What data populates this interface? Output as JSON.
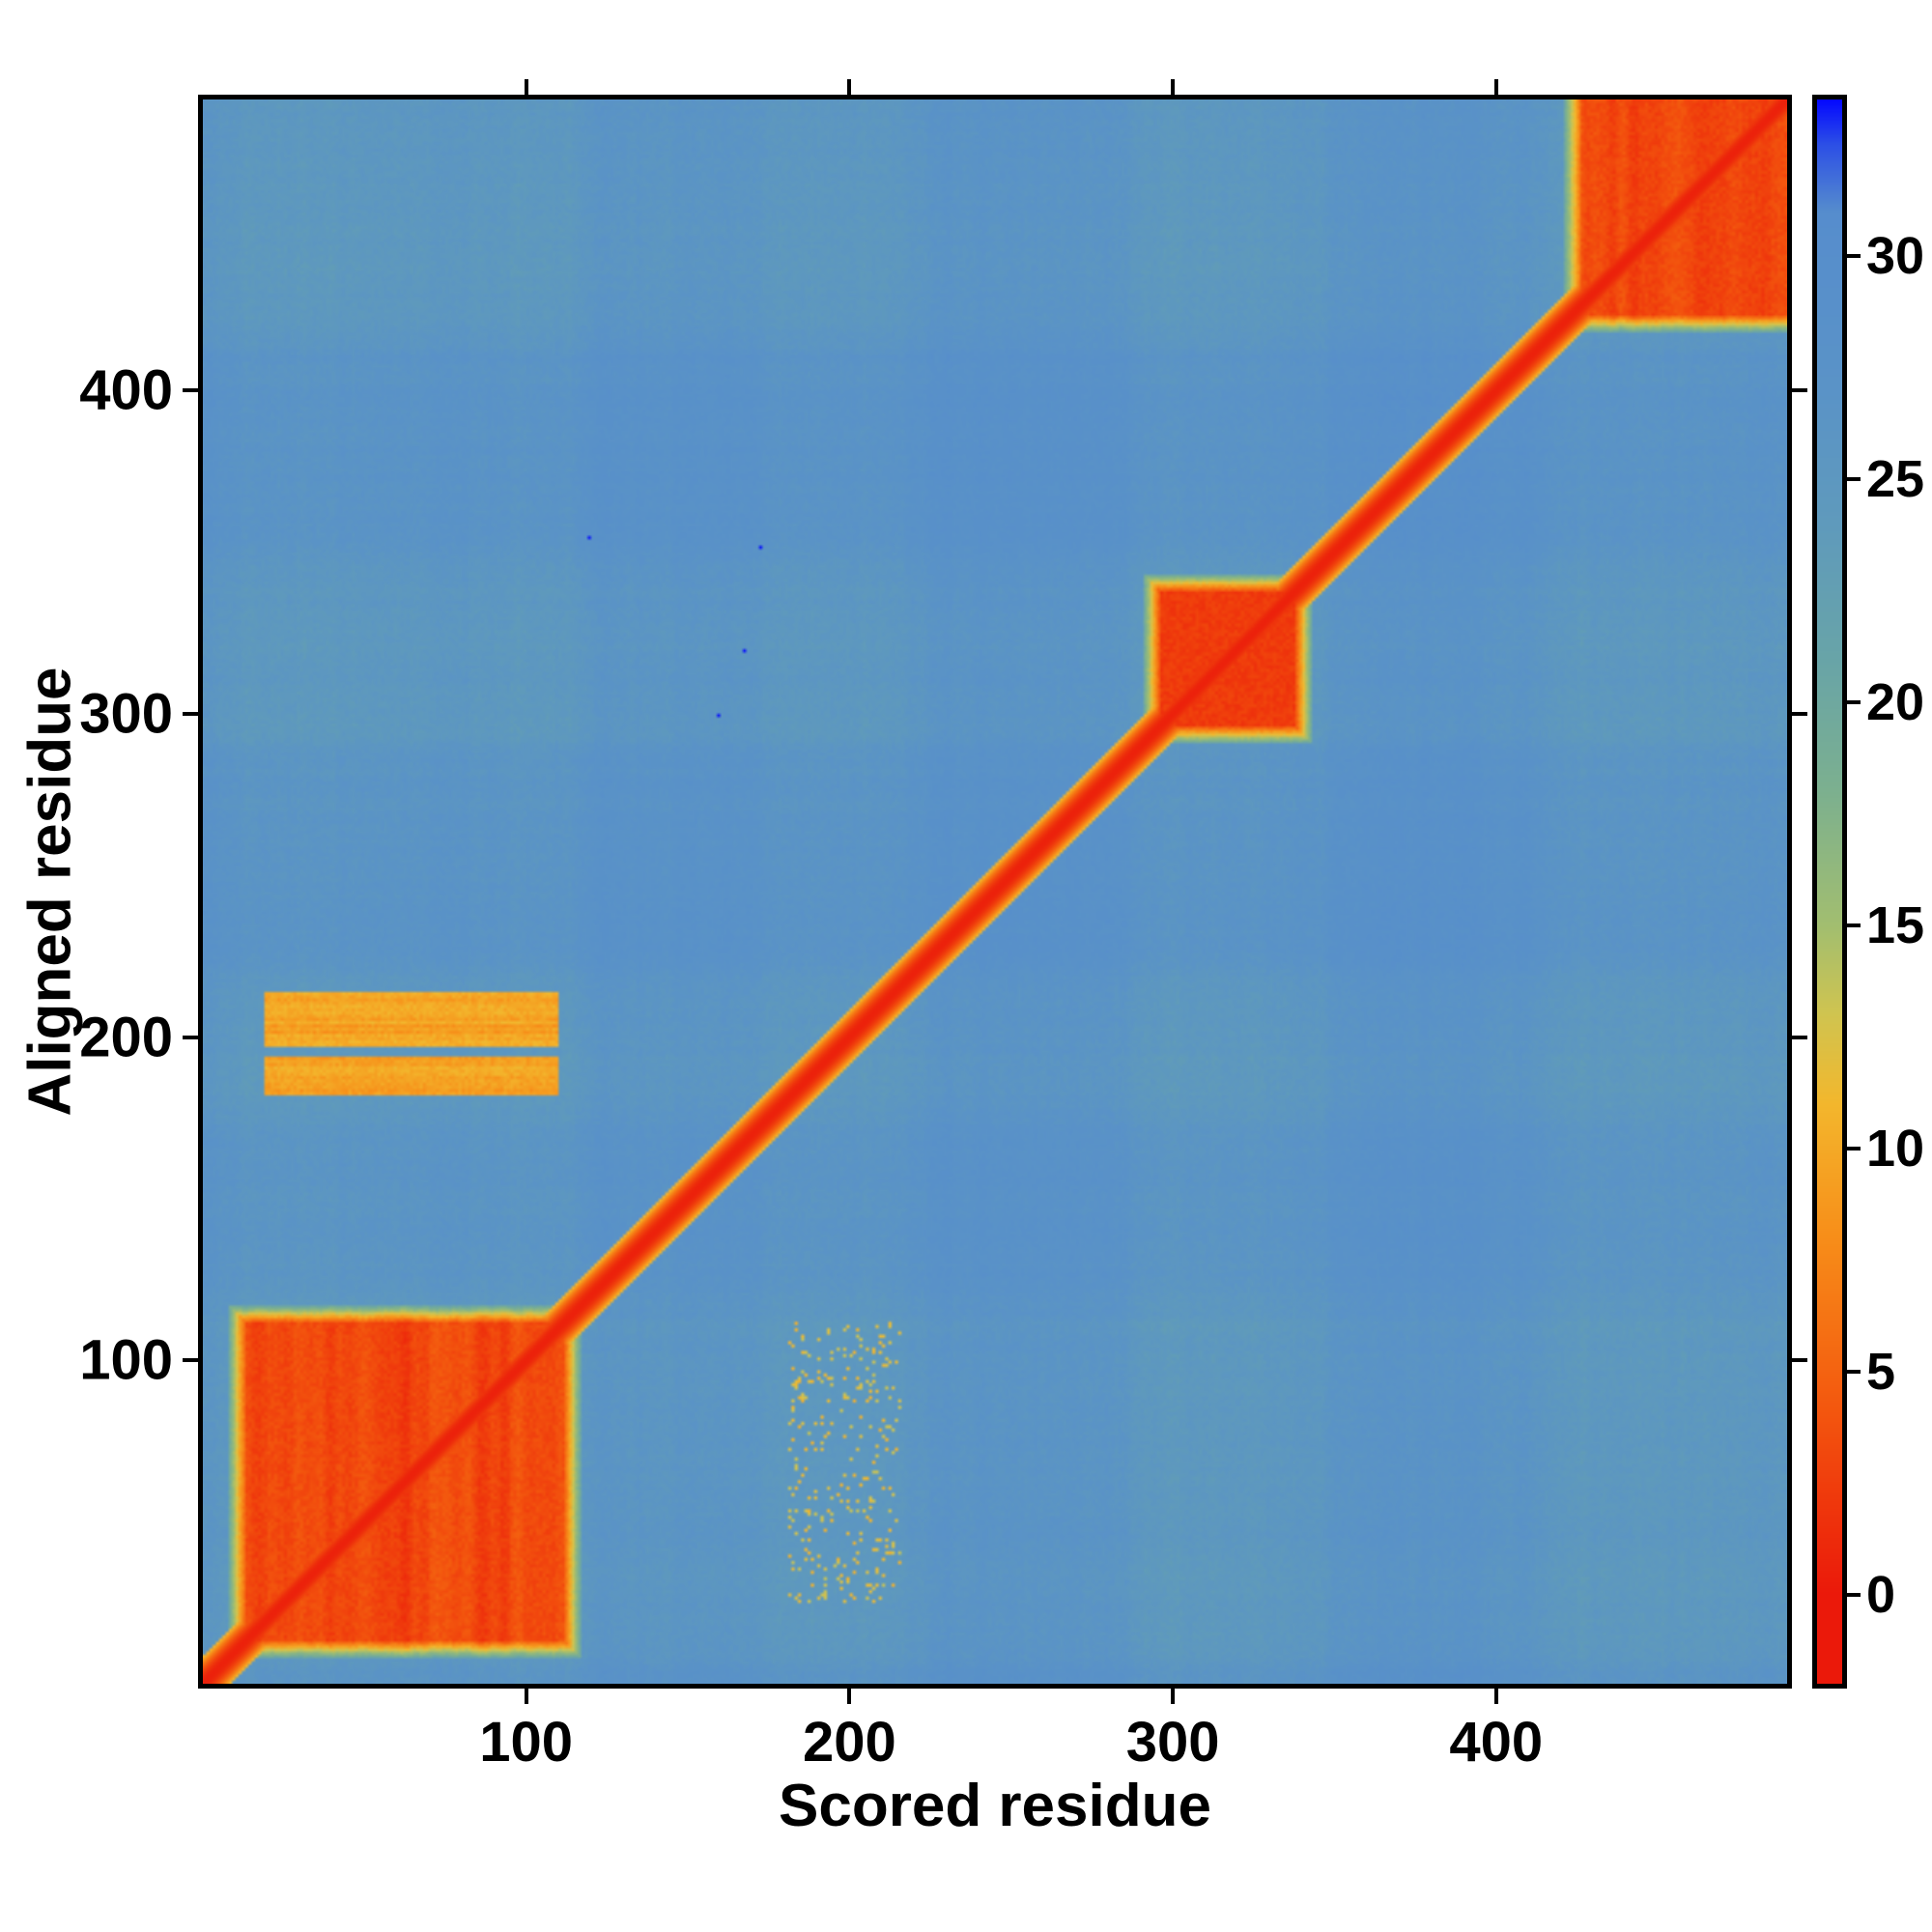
{
  "chart_data": {
    "type": "heatmap",
    "title": "",
    "xlabel": "Scored residue",
    "ylabel": "Aligned residue",
    "x_range": [
      1,
      490
    ],
    "y_range": [
      1,
      490
    ],
    "x_ticks": [
      100,
      200,
      300,
      400
    ],
    "y_ticks": [
      100,
      200,
      300,
      400
    ],
    "grid": false,
    "background_value": 29,
    "colorbar": {
      "position": "right",
      "min": -2,
      "max": 33.5,
      "ticks": [
        0,
        5,
        10,
        15,
        20,
        25,
        30
      ]
    },
    "colormap_stops": [
      [
        0,
        [
          235,
          25,
          10
        ]
      ],
      [
        4,
        [
          243,
          85,
          14
        ]
      ],
      [
        8,
        [
          247,
          142,
          25
        ]
      ],
      [
        11,
        [
          243,
          183,
          45
        ]
      ],
      [
        13,
        [
          208,
          196,
          80
        ]
      ],
      [
        15,
        [
          162,
          190,
          112
        ]
      ],
      [
        18,
        [
          124,
          176,
          143
        ]
      ],
      [
        21,
        [
          104,
          164,
          168
        ]
      ],
      [
        24,
        [
          95,
          154,
          188
        ]
      ],
      [
        27,
        [
          90,
          147,
          199
        ]
      ],
      [
        31,
        [
          86,
          141,
          205
        ]
      ],
      [
        32.5,
        [
          45,
          80,
          230
        ]
      ],
      [
        33.5,
        [
          5,
          10,
          255
        ]
      ]
    ],
    "features": {
      "diagonal": {
        "value": 0.5,
        "half_width": 9
      },
      "blocks": [
        {
          "x": [
            14,
            112
          ],
          "y": [
            14,
            112
          ],
          "value": 1.2,
          "streaks": true
        },
        {
          "x": [
            297,
            338
          ],
          "y": [
            297,
            338
          ],
          "value": 1.5,
          "streaks": false
        },
        {
          "x": [
            427,
            490
          ],
          "y": [
            424,
            490
          ],
          "value": 1.3,
          "streaks": true
        }
      ],
      "bands": [
        {
          "x": [
            20,
            110
          ],
          "y": [
            183,
            194
          ],
          "value": 8.5
        },
        {
          "x": [
            20,
            110
          ],
          "y": [
            198,
            214
          ],
          "value": 8.5
        }
      ],
      "speckle_region": {
        "x": [
          182,
          216
        ],
        "y": [
          26,
          112
        ],
        "value": 9.5,
        "density": 0.09
      },
      "crosshatch_segments": [
        [
          14,
          112
        ],
        [
          180,
          216
        ],
        [
          295,
          345
        ],
        [
          420,
          490
        ]
      ],
      "blue_dots": [
        [
          120,
          355
        ],
        [
          168,
          320
        ],
        [
          160,
          300
        ],
        [
          173,
          352
        ]
      ]
    }
  }
}
